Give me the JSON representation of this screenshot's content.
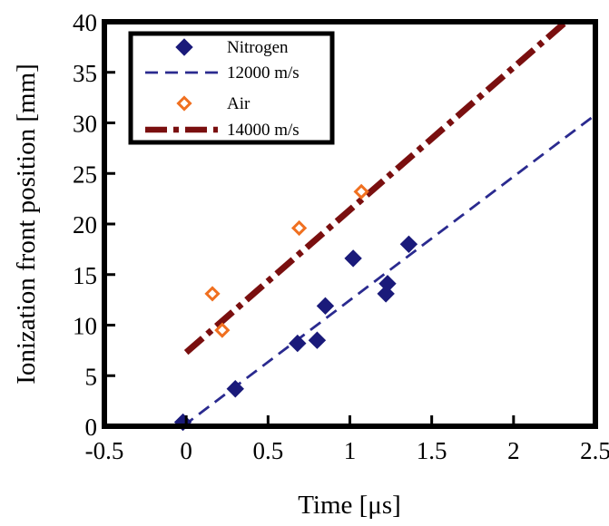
{
  "chart_data": {
    "type": "scatter",
    "xlabel": "Time [μs]",
    "ylabel": "Ionization front position [mm]",
    "xlim": [
      -0.5,
      2.5
    ],
    "ylim": [
      0,
      40
    ],
    "xticks": [
      "-0.5",
      "0",
      "0.5",
      "1",
      "1.5",
      "2",
      "2.5"
    ],
    "yticks": [
      "0",
      "5",
      "10",
      "15",
      "20",
      "25",
      "30",
      "35",
      "40"
    ],
    "grid": false,
    "legend_position": "top-left",
    "series": [
      {
        "name": "Nitrogen",
        "kind": "points",
        "marker": "filled-diamond",
        "color": "#1a1a7a",
        "x": [
          -0.02,
          0.3,
          0.68,
          0.8,
          0.85,
          1.02,
          1.22,
          1.23,
          1.36
        ],
        "y": [
          0.4,
          3.7,
          8.2,
          8.5,
          11.9,
          16.6,
          13.1,
          14.1,
          18.0
        ]
      },
      {
        "name": "12000 m/s",
        "kind": "line",
        "style": "dashed",
        "color": "#2a2a8f",
        "x": [
          -0.02,
          2.5
        ],
        "y": [
          0.0,
          30.8
        ]
      },
      {
        "name": "Air",
        "kind": "points",
        "marker": "open-diamond",
        "color": "#f07020",
        "x": [
          0.16,
          0.22,
          0.69,
          1.07
        ],
        "y": [
          13.1,
          9.5,
          19.6,
          23.2
        ]
      },
      {
        "name": "14000 m/s",
        "kind": "line",
        "style": "dash-dot",
        "color": "#7a0f0f",
        "x": [
          0.0,
          2.32
        ],
        "y": [
          7.3,
          40.0
        ]
      }
    ]
  }
}
